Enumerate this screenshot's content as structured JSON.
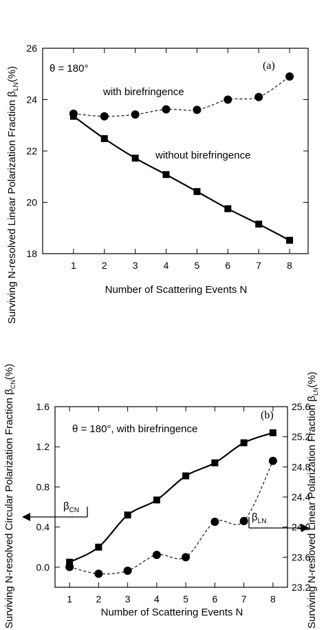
{
  "chart_data": [
    {
      "type": "line",
      "panel_label": "(a)",
      "annotation": "θ = 180°",
      "xlabel": "Number  of Scattering Events N",
      "ylabel": "Surviving N-resolved Linear Polarization Fraction β_LN(%)",
      "x": [
        1,
        2,
        3,
        4,
        5,
        6,
        7,
        8
      ],
      "xticks": [
        1,
        2,
        3,
        4,
        5,
        6,
        7,
        8
      ],
      "xlim": [
        0,
        8.6
      ],
      "ylim": [
        18,
        26
      ],
      "yticks": [
        18,
        20,
        22,
        24,
        26
      ],
      "grid": false,
      "series": [
        {
          "name": "with birefringence",
          "marker": "circle",
          "line": "dashed",
          "values": [
            23.45,
            23.35,
            23.42,
            23.62,
            23.6,
            24.0,
            24.1,
            24.9
          ]
        },
        {
          "name": "without birefringence",
          "marker": "square",
          "line": "solid",
          "values": [
            23.35,
            22.48,
            21.72,
            21.08,
            20.42,
            19.75,
            19.15,
            18.52
          ]
        }
      ]
    },
    {
      "type": "line",
      "panel_label": "(b)",
      "annotation": "θ = 180°, with birefringence",
      "xlabel": "Number of Scattering Events N",
      "ylabel": "Surviving N-resolved Circular Polarization Fraction β_CN(%)",
      "y2label": "Surviving N-resloved Linear Polarization Fraction β_LN(%)",
      "x": [
        1,
        2,
        3,
        4,
        5,
        6,
        7,
        8
      ],
      "xticks": [
        1,
        2,
        3,
        4,
        5,
        6,
        7,
        8
      ],
      "xlim": [
        0.5,
        8.5
      ],
      "ylim": [
        -0.2,
        1.6
      ],
      "yticks": [
        0.0,
        0.4,
        0.8,
        1.2,
        1.6
      ],
      "y2lim": [
        23.2,
        25.6
      ],
      "y2ticks": [
        23.2,
        23.6,
        24.0,
        24.4,
        24.8,
        25.2,
        25.6
      ],
      "grid": false,
      "series": [
        {
          "name": "β_CN",
          "axis": "left",
          "marker": "square",
          "line": "solid",
          "values": [
            0.05,
            0.2,
            0.52,
            0.67,
            0.91,
            1.04,
            1.24,
            1.34
          ]
        },
        {
          "name": "β_LN",
          "axis": "right",
          "marker": "circle",
          "line": "dashed",
          "values": [
            23.47,
            23.38,
            23.42,
            23.63,
            23.6,
            24.07,
            24.08,
            24.88
          ]
        }
      ]
    }
  ],
  "labels_a": {
    "with": "with birefringence",
    "without": "without birefringence",
    "beta_sub_left": "LN",
    "beta_suffix_left": "(%)"
  },
  "labels_b": {
    "beta_cn": "β",
    "beta_cn_sub": "CN",
    "beta_ln": "β",
    "beta_ln_sub": "LN",
    "left_sub": "CN",
    "right_sub": "LN",
    "suffix": "(%)"
  }
}
